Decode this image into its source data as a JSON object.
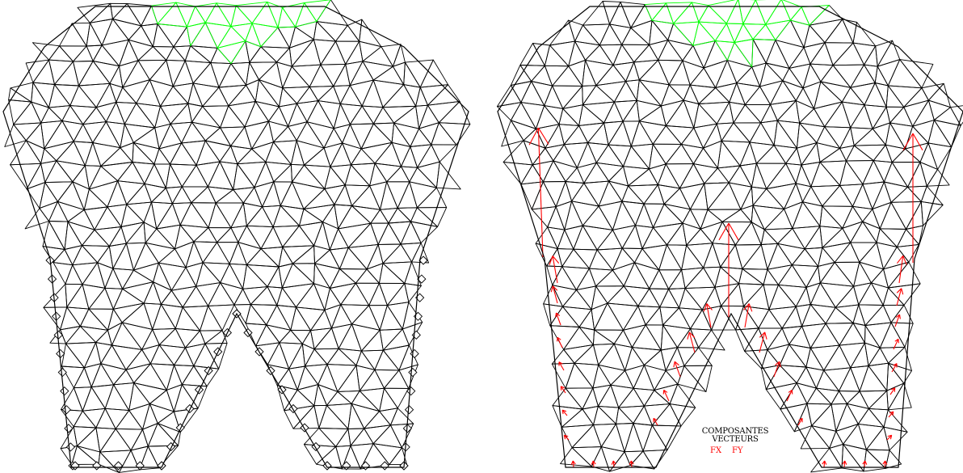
{
  "legend": {
    "line1": "COMPOSANTES",
    "line2": "VECTEURS",
    "comp_x": "FX",
    "comp_y": "FY"
  },
  "colors": {
    "background": "#ffffff",
    "mesh": "#000000",
    "loaded_region": "#00ff00",
    "force_vectors": "#ff0000",
    "supports": "#000000"
  },
  "panels": [
    {
      "id": "left",
      "content": "tooth-mesh-with-boundary-supports"
    },
    {
      "id": "right",
      "content": "tooth-mesh-with-reaction-force-vectors"
    }
  ]
}
